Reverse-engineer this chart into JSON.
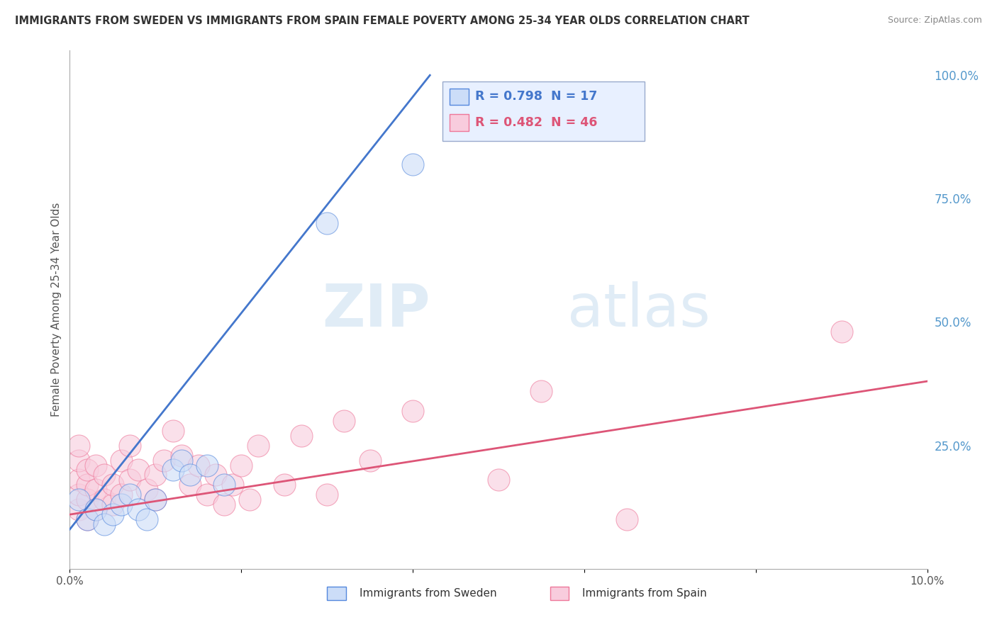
{
  "title": "IMMIGRANTS FROM SWEDEN VS IMMIGRANTS FROM SPAIN FEMALE POVERTY AMONG 25-34 YEAR OLDS CORRELATION CHART",
  "source": "Source: ZipAtlas.com",
  "ylabel": "Female Poverty Among 25-34 Year Olds",
  "xlim": [
    0.0,
    0.1
  ],
  "ylim": [
    0.0,
    1.05
  ],
  "xticks": [
    0.0,
    0.02,
    0.04,
    0.06,
    0.08,
    0.1
  ],
  "xticklabels": [
    "0.0%",
    "",
    "",
    "",
    "",
    "10.0%"
  ],
  "ytick_labels_right": [
    "100.0%",
    "75.0%",
    "50.0%",
    "25.0%"
  ],
  "ytick_positions_right": [
    1.0,
    0.75,
    0.5,
    0.25
  ],
  "legend_r_sweden": "R = 0.798",
  "legend_n_sweden": "N = 17",
  "legend_r_spain": "R = 0.482",
  "legend_n_spain": "N = 46",
  "sweden_edge_color": "#5588dd",
  "sweden_fill_color": "#ccddf8",
  "spain_edge_color": "#ee7799",
  "spain_fill_color": "#f8ccdd",
  "line_sweden_color": "#4477cc",
  "line_spain_color": "#dd5577",
  "watermark_zip": "ZIP",
  "watermark_atlas": "atlas",
  "sweden_points_x": [
    0.001,
    0.002,
    0.003,
    0.004,
    0.005,
    0.006,
    0.007,
    0.008,
    0.009,
    0.01,
    0.012,
    0.013,
    0.014,
    0.016,
    0.018,
    0.03,
    0.04
  ],
  "sweden_points_y": [
    0.14,
    0.1,
    0.12,
    0.09,
    0.11,
    0.13,
    0.15,
    0.12,
    0.1,
    0.14,
    0.2,
    0.22,
    0.19,
    0.21,
    0.17,
    0.7,
    0.82
  ],
  "spain_points_x": [
    0.001,
    0.001,
    0.001,
    0.001,
    0.001,
    0.002,
    0.002,
    0.002,
    0.002,
    0.003,
    0.003,
    0.003,
    0.004,
    0.004,
    0.005,
    0.005,
    0.006,
    0.006,
    0.007,
    0.007,
    0.008,
    0.009,
    0.01,
    0.01,
    0.011,
    0.012,
    0.013,
    0.014,
    0.015,
    0.016,
    0.017,
    0.018,
    0.019,
    0.02,
    0.021,
    0.022,
    0.025,
    0.027,
    0.03,
    0.032,
    0.035,
    0.04,
    0.05,
    0.055,
    0.065,
    0.09
  ],
  "spain_points_y": [
    0.12,
    0.15,
    0.18,
    0.22,
    0.25,
    0.1,
    0.14,
    0.17,
    0.2,
    0.12,
    0.16,
    0.21,
    0.14,
    0.19,
    0.13,
    0.17,
    0.15,
    0.22,
    0.18,
    0.25,
    0.2,
    0.16,
    0.14,
    0.19,
    0.22,
    0.28,
    0.23,
    0.17,
    0.21,
    0.15,
    0.19,
    0.13,
    0.17,
    0.21,
    0.14,
    0.25,
    0.17,
    0.27,
    0.15,
    0.3,
    0.22,
    0.32,
    0.18,
    0.36,
    0.1,
    0.48
  ],
  "sweden_line_x": [
    0.0,
    0.042
  ],
  "sweden_line_y": [
    0.08,
    1.0
  ],
  "spain_line_x": [
    0.0,
    0.1
  ],
  "spain_line_y": [
    0.11,
    0.38
  ],
  "background_color": "#ffffff",
  "grid_color": "#dddddd",
  "title_color": "#333333",
  "axis_label_color": "#555555",
  "right_tick_color": "#5599cc",
  "legend_box_color": "#e8f0ff",
  "legend_border_color": "#99aacc"
}
